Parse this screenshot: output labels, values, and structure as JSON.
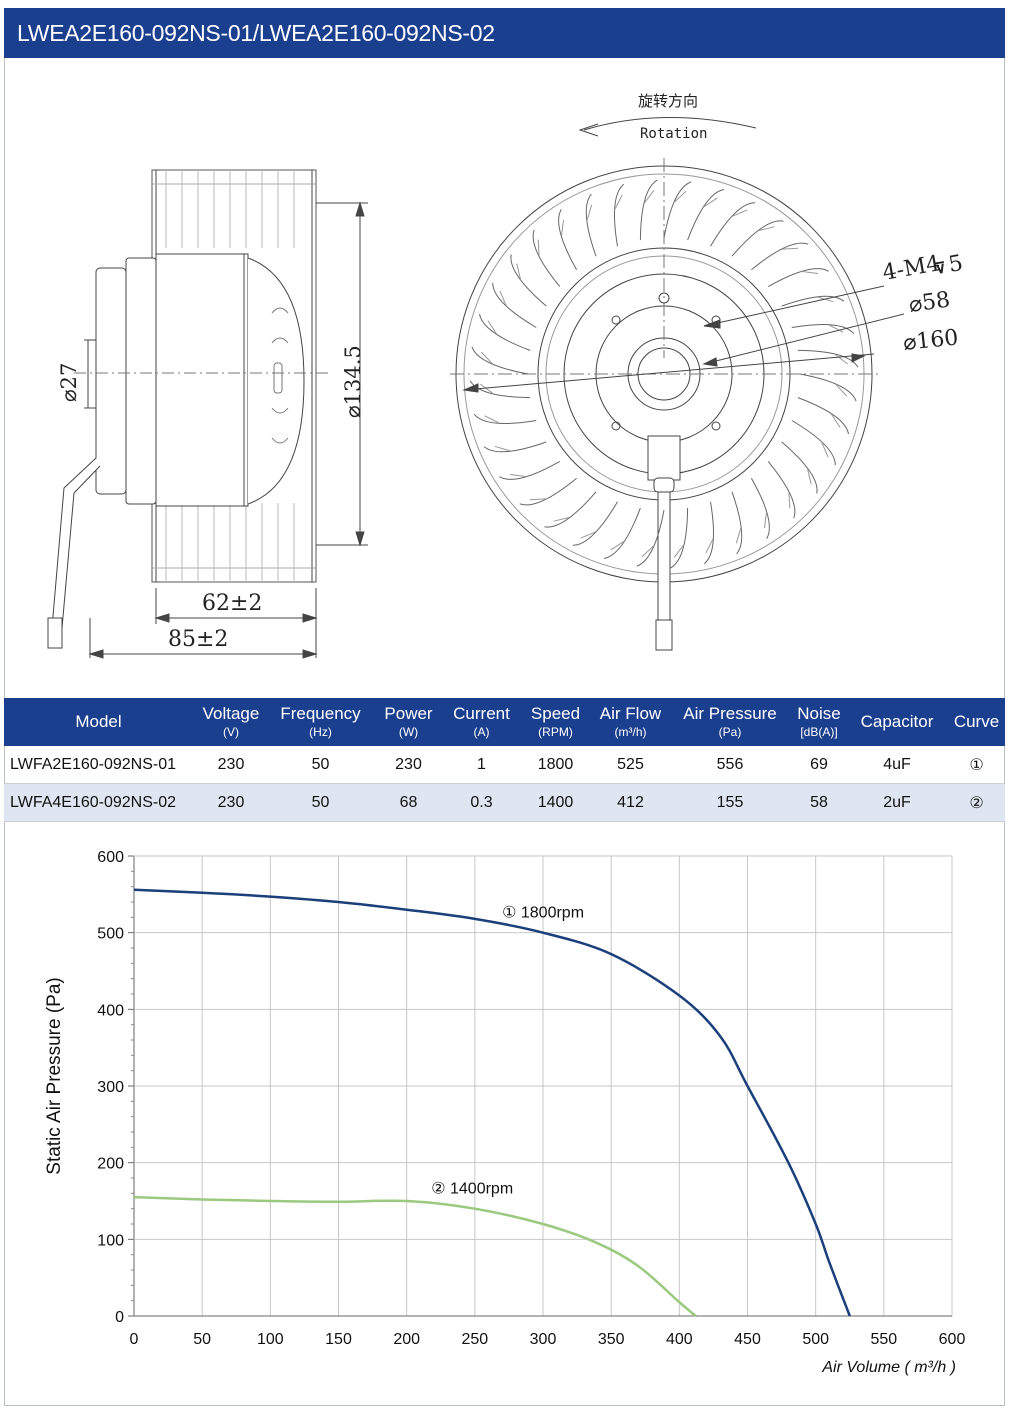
{
  "title": "LWEA2E160-092NS-01/LWEA2E160-092NS-02",
  "drawing": {
    "rotation_cn": "旋转方向",
    "rotation_en": "Rotation",
    "dim_holes": "4-M4",
    "dim_holes_depth": "5",
    "dim_58": "⌀58",
    "dim_160": "⌀160",
    "dim_27": "⌀27",
    "dim_134": "⌀134.5",
    "dim_62": "62±2",
    "dim_85": "85±2"
  },
  "table": {
    "headers": [
      {
        "label": "Model",
        "unit": ""
      },
      {
        "label": "Voltage",
        "unit": "(V)"
      },
      {
        "label": "Frequency",
        "unit": "(Hz)"
      },
      {
        "label": "Power",
        "unit": "(W)"
      },
      {
        "label": "Current",
        "unit": "(A)"
      },
      {
        "label": "Speed",
        "unit": "(RPM)"
      },
      {
        "label": "Air Flow",
        "unit": "(m³/h)"
      },
      {
        "label": "Air Pressure",
        "unit": "(Pa)"
      },
      {
        "label": "Noise",
        "unit": "[dB(A)]"
      },
      {
        "label": "Capacitor",
        "unit": ""
      },
      {
        "label": "Curve",
        "unit": ""
      }
    ],
    "rows": [
      [
        "LWFA2E160-092NS-01",
        "230",
        "50",
        "230",
        "1",
        "1800",
        "525",
        "556",
        "69",
        "4uF",
        "①"
      ],
      [
        "LWFA4E160-092NS-02",
        "230",
        "50",
        "68",
        "0.3",
        "1400",
        "412",
        "155",
        "58",
        "2uF",
        "②"
      ]
    ]
  },
  "chart_data": {
    "type": "line",
    "title": "",
    "xlabel": "Air Volume ( m³/h )",
    "ylabel": "Static Air Pressure  (Pa)",
    "xlim": [
      0,
      600
    ],
    "ylim": [
      0,
      600
    ],
    "xticks": [
      0,
      50,
      100,
      150,
      200,
      250,
      300,
      350,
      400,
      450,
      500,
      550,
      600
    ],
    "yticks": [
      0,
      100,
      200,
      300,
      400,
      500,
      600
    ],
    "grid": true,
    "series": [
      {
        "name": "① 1800rpm",
        "color": "#1b3f7a",
        "x": [
          0,
          50,
          100,
          150,
          200,
          250,
          300,
          350,
          400,
          430,
          450,
          480,
          500,
          510,
          525
        ],
        "y": [
          556,
          552,
          547,
          540,
          530,
          518,
          500,
          472,
          418,
          365,
          300,
          200,
          120,
          70,
          0
        ]
      },
      {
        "name": "② 1400rpm",
        "color": "#9ac97f",
        "x": [
          0,
          50,
          100,
          150,
          200,
          250,
          300,
          340,
          370,
          400,
          412
        ],
        "y": [
          155,
          152,
          150,
          149,
          150,
          140,
          120,
          95,
          65,
          18,
          0
        ]
      }
    ]
  }
}
